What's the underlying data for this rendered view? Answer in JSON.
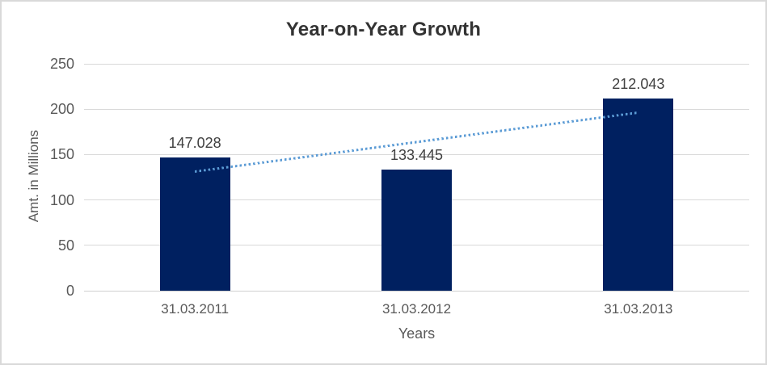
{
  "chart_data": {
    "type": "bar",
    "title": "Year-on-Year Growth",
    "xlabel": "Years",
    "ylabel": "Amt. in Millions",
    "categories": [
      "31.03.2011",
      "31.03.2012",
      "31.03.2013"
    ],
    "values": [
      147.028,
      133.445,
      212.043
    ],
    "value_labels": [
      "147.028",
      "133.445",
      "212.043"
    ],
    "ylim": [
      0,
      250
    ],
    "yticks": [
      0,
      50,
      100,
      150,
      200,
      250
    ],
    "grid": true,
    "legend": false,
    "trendline": {
      "type": "linear",
      "style": "dotted",
      "start_value": 131.657,
      "end_value": 196.687
    },
    "colors": {
      "bar": "#002060",
      "trendline": "#5b9bd5",
      "gridline": "#d9d9d9",
      "axis_line": "#cfcfcf",
      "tick_label": "#595959",
      "data_label": "#404040",
      "title": "#333333",
      "border": "#d9d9d9",
      "background": "#ffffff"
    }
  }
}
